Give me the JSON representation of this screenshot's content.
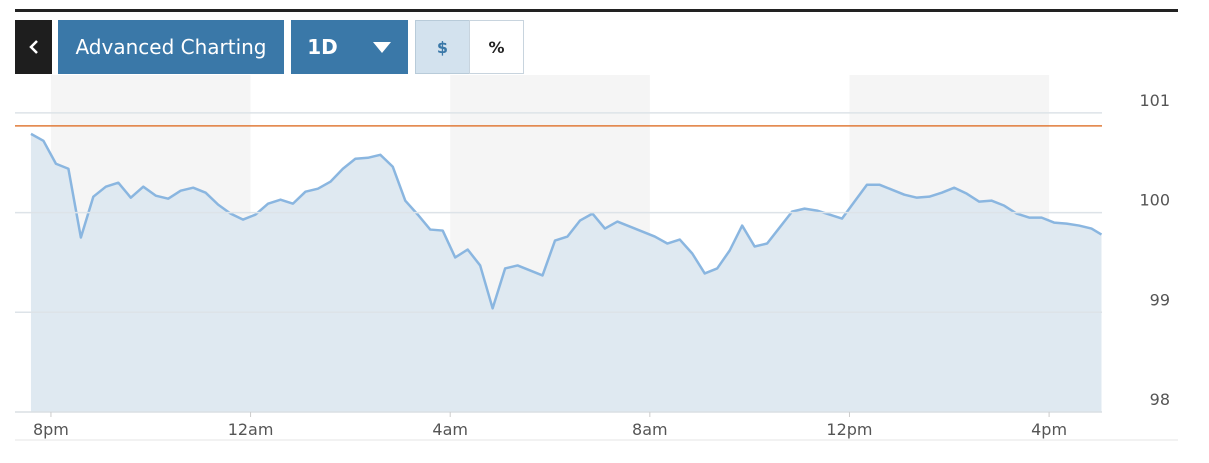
{
  "toolbar": {
    "buttons": [
      "Advanced Charting",
      "1D",
      "$",
      "%"
    ]
  },
  "chart_data": {
    "type": "line",
    "x": [
      19.6,
      19.85,
      20.1,
      20.35,
      20.6,
      20.85,
      21.1,
      21.35,
      21.6,
      21.85,
      22.1,
      22.35,
      22.6,
      22.85,
      23.1,
      23.35,
      23.6,
      23.85,
      24.1,
      24.35,
      24.6,
      24.85,
      25.1,
      25.35,
      25.6,
      25.85,
      26.1,
      26.35,
      26.6,
      26.85,
      27.1,
      27.35,
      27.6,
      27.85,
      28.1,
      28.35,
      28.6,
      28.85,
      29.1,
      29.35,
      29.6,
      29.85,
      30.1,
      30.35,
      30.6,
      30.85,
      31.1,
      31.35,
      31.6,
      31.85,
      32.1,
      32.35,
      32.6,
      32.85,
      33.1,
      33.35,
      33.6,
      33.85,
      34.1,
      34.35,
      34.6,
      34.85,
      35.1,
      35.35,
      35.6,
      35.85,
      36.1,
      36.35,
      36.6,
      36.85,
      37.1,
      37.35,
      37.6,
      37.85,
      38.1,
      38.35,
      38.6,
      38.85,
      39.1,
      39.35,
      39.6,
      39.85,
      40.1,
      40.35,
      40.6,
      40.85,
      41.05
    ],
    "series": [
      {
        "color": "#8ab6e0",
        "fill": "#dfe9f1",
        "values": [
          100.79,
          100.72,
          100.49,
          100.44,
          99.75,
          100.16,
          100.26,
          100.3,
          100.15,
          100.26,
          100.17,
          100.14,
          100.22,
          100.25,
          100.2,
          100.08,
          99.99,
          99.93,
          99.98,
          100.09,
          100.13,
          100.09,
          100.21,
          100.24,
          100.31,
          100.44,
          100.54,
          100.55,
          100.58,
          100.46,
          100.12,
          99.98,
          99.83,
          99.82,
          99.55,
          99.63,
          99.47,
          99.04,
          99.44,
          99.47,
          99.42,
          99.37,
          99.72,
          99.76,
          99.92,
          99.99,
          99.84,
          99.91,
          99.86,
          99.81,
          99.76,
          99.69,
          99.73,
          99.59,
          99.39,
          99.44,
          99.62,
          99.87,
          99.66,
          99.69,
          99.85,
          100.01,
          100.04,
          100.02,
          99.98,
          99.94,
          100.11,
          100.28,
          100.28,
          100.23,
          100.18,
          100.15,
          100.16,
          100.2,
          100.25,
          100.19,
          100.11,
          100.12,
          100.07,
          99.99,
          99.95,
          99.95,
          99.9,
          99.89,
          99.87,
          99.84,
          99.78
        ]
      }
    ],
    "reference_line": {
      "value": 100.87,
      "color": "#e07b39"
    },
    "xlim": [
      19.28,
      41.06
    ],
    "ylim": [
      98,
      101.25
    ],
    "xticks": [
      {
        "value": 20,
        "label": "8pm"
      },
      {
        "value": 24,
        "label": "12am"
      },
      {
        "value": 28,
        "label": "4am"
      },
      {
        "value": 32,
        "label": "8am"
      },
      {
        "value": 36,
        "label": "12pm"
      },
      {
        "value": 40,
        "label": "4pm"
      }
    ],
    "yticks": [
      98,
      99,
      100,
      101
    ],
    "grid": true,
    "band_color": "#f5f5f5"
  }
}
